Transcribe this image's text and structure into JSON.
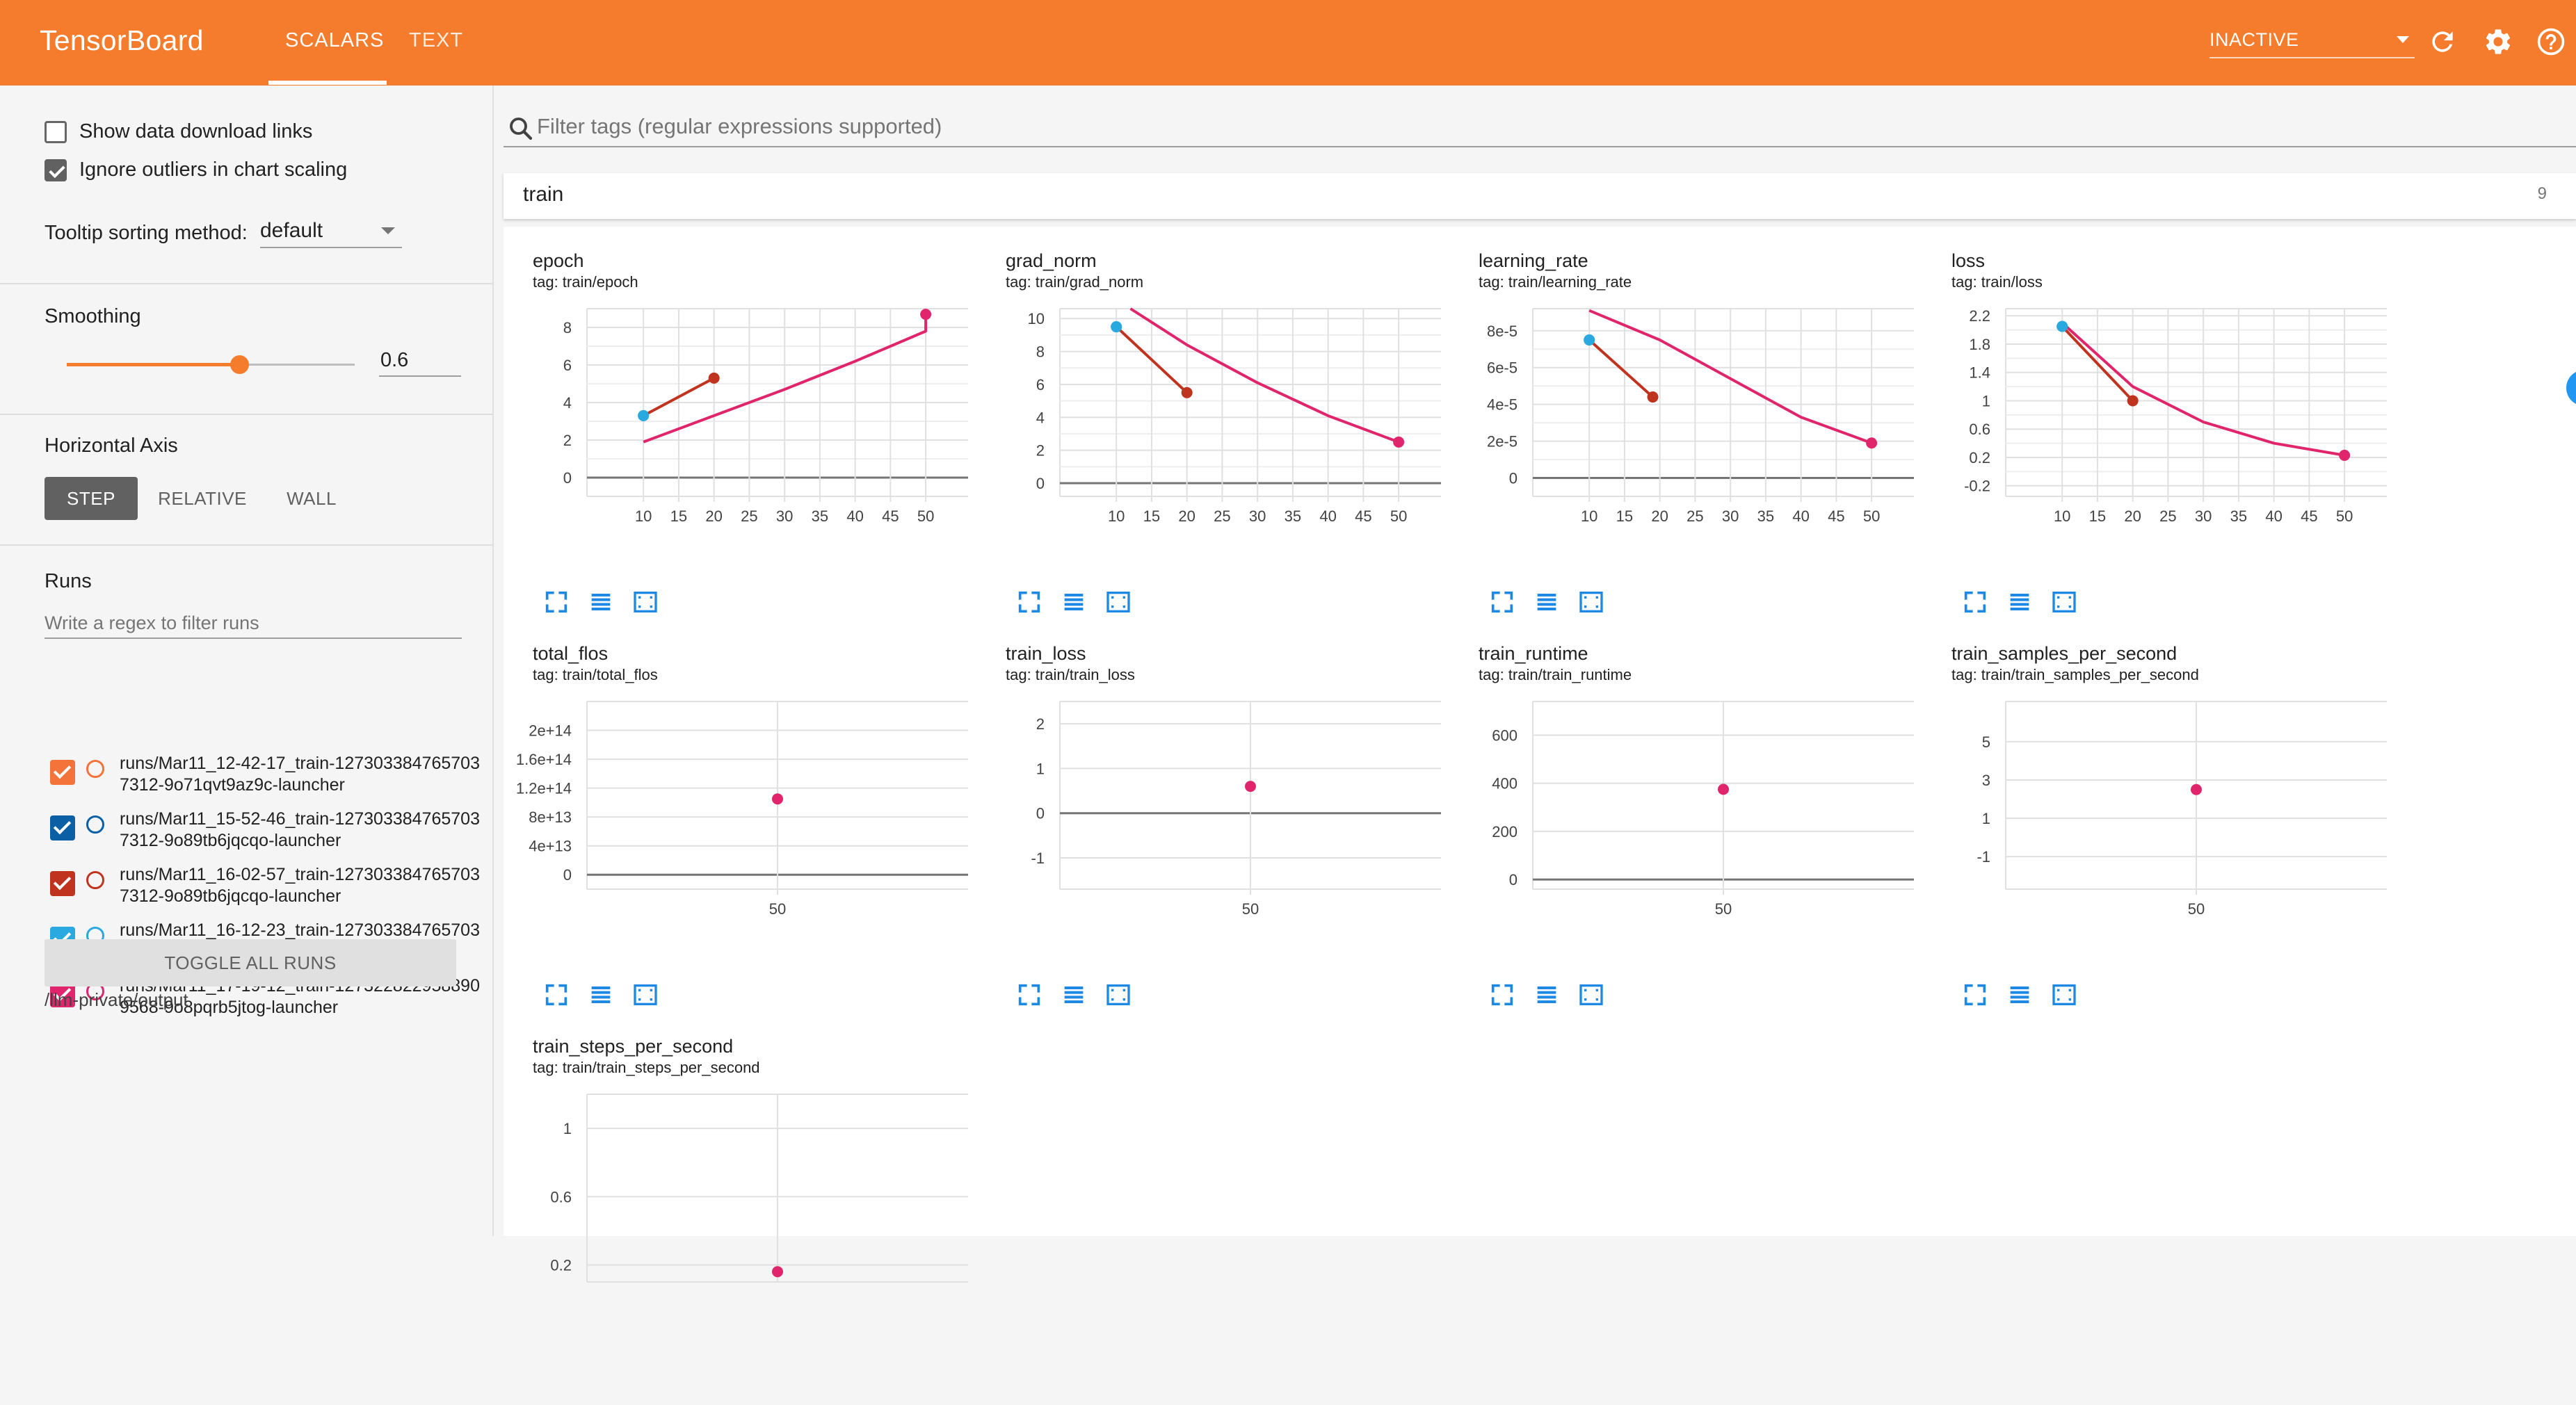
{
  "header": {
    "brand": "TensorBoard",
    "tabs": [
      {
        "label": "SCALARS",
        "active": true
      },
      {
        "label": "TEXT",
        "active": false
      }
    ],
    "run_status": "INACTIVE",
    "color": "#f57c2c"
  },
  "sidebar": {
    "show_download_label": "Show data download links",
    "show_download_checked": false,
    "ignore_outliers_label": "Ignore outliers in chart scaling",
    "ignore_outliers_checked": true,
    "tooltip_label": "Tooltip sorting method:",
    "tooltip_value": "default",
    "smoothing_title": "Smoothing",
    "smoothing_value": "0.6",
    "smoothing_fraction": 0.6,
    "axis_title": "Horizontal Axis",
    "axis_options": [
      "STEP",
      "RELATIVE",
      "WALL"
    ],
    "axis_selected": "STEP",
    "runs_title": "Runs",
    "runs_filter_placeholder": "Write a regex to filter runs",
    "runs": [
      {
        "name": "runs/Mar11_12-42-17_train-1273033847657037312-9o71qvt9az9c-launcher",
        "color": "#f4733a",
        "checked": true
      },
      {
        "name": "runs/Mar11_15-52-46_train-1273033847657037312-9o89tb6jqcqo-launcher",
        "color": "#0b5fa5",
        "checked": true
      },
      {
        "name": "runs/Mar11_16-02-57_train-1273033847657037312-9o89tb6jqcqo-launcher",
        "color": "#c0331f",
        "checked": true
      },
      {
        "name": "runs/Mar11_16-12-23_train-1273033847657037312-9o89tb6jqcqo-launcher",
        "color": "#29a9e0",
        "checked": true
      },
      {
        "name": "runs/Mar11_17-19-12_train-1273228229588909568-9o8pqrb5jtog-launcher",
        "color": "#e0256c",
        "checked": true
      }
    ],
    "toggle_all_label": "TOGGLE ALL RUNS",
    "logdir": "/llm-private/output"
  },
  "main": {
    "tag_filter_placeholder": "Filter tags (regular expressions supported)",
    "group_name": "train",
    "group_count": "9"
  },
  "chart_data": [
    {
      "title": "epoch",
      "tag": "tag: train/epoch",
      "type": "line",
      "xlim": [
        2,
        56
      ],
      "ylim": [
        -1,
        9
      ],
      "xticks": [
        "10",
        "15",
        "20",
        "25",
        "30",
        "35",
        "40",
        "45",
        "50"
      ],
      "yticks": [
        "0",
        "2",
        "4",
        "6",
        "8"
      ],
      "series": [
        {
          "color": "#29a9e0",
          "x": [
            10
          ],
          "y": [
            3.3
          ]
        },
        {
          "color": "#c0331f",
          "x": [
            10,
            20
          ],
          "y": [
            3.3,
            5.3
          ]
        },
        {
          "color": "#e0256c",
          "x": [
            10,
            20,
            30,
            40,
            50,
            50
          ],
          "y": [
            1.9,
            3.3,
            4.7,
            6.2,
            7.8,
            8.7
          ]
        }
      ]
    },
    {
      "title": "grad_norm",
      "tag": "tag: train/grad_norm",
      "type": "line",
      "xlim": [
        2,
        56
      ],
      "ylim": [
        -0.8,
        10.6
      ],
      "xticks": [
        "10",
        "15",
        "20",
        "25",
        "30",
        "35",
        "40",
        "45",
        "50"
      ],
      "yticks": [
        "0",
        "2",
        "4",
        "6",
        "8",
        "10"
      ],
      "series": [
        {
          "color": "#29a9e0",
          "x": [
            10
          ],
          "y": [
            9.5
          ]
        },
        {
          "color": "#c0331f",
          "x": [
            10,
            20
          ],
          "y": [
            9.5,
            5.5
          ]
        },
        {
          "color": "#e0256c",
          "x": [
            12,
            20,
            30,
            40,
            50
          ],
          "y": [
            10.6,
            8.4,
            6.1,
            4.1,
            2.5
          ]
        }
      ]
    },
    {
      "title": "learning_rate",
      "tag": "tag: train/learning_rate",
      "type": "line",
      "xlim": [
        2,
        56
      ],
      "ylim": [
        -1e-05,
        9.2e-05
      ],
      "xticks": [
        "10",
        "15",
        "20",
        "25",
        "30",
        "35",
        "40",
        "45",
        "50"
      ],
      "yticks": [
        "0",
        "2e-5",
        "4e-5",
        "6e-5",
        "8e-5"
      ],
      "yvals": [
        0,
        2e-05,
        4e-05,
        6e-05,
        8e-05
      ],
      "series": [
        {
          "color": "#29a9e0",
          "x": [
            10
          ],
          "y": [
            7.5e-05
          ]
        },
        {
          "color": "#c0331f",
          "x": [
            10,
            19
          ],
          "y": [
            7.5e-05,
            4.4e-05
          ]
        },
        {
          "color": "#e0256c",
          "x": [
            10,
            20,
            30,
            40,
            50
          ],
          "y": [
            9.1e-05,
            7.5e-05,
            5.4e-05,
            3.3e-05,
            1.9e-05
          ]
        }
      ]
    },
    {
      "title": "loss",
      "tag": "tag: train/loss",
      "type": "line",
      "xlim": [
        2,
        56
      ],
      "ylim": [
        -0.35,
        2.3
      ],
      "xticks": [
        "10",
        "15",
        "20",
        "25",
        "30",
        "35",
        "40",
        "45",
        "50"
      ],
      "yticks": [
        "-0.2",
        "0.2",
        "0.6",
        "1",
        "1.4",
        "1.8",
        "2.2"
      ],
      "yvals": [
        -0.2,
        0.2,
        0.6,
        1,
        1.4,
        1.8,
        2.2
      ],
      "series": [
        {
          "color": "#29a9e0",
          "x": [
            10
          ],
          "y": [
            2.05
          ]
        },
        {
          "color": "#c0331f",
          "x": [
            10,
            20
          ],
          "y": [
            2.05,
            1.0
          ]
        },
        {
          "color": "#e0256c",
          "x": [
            10,
            20,
            30,
            40,
            50
          ],
          "y": [
            2.1,
            1.2,
            0.7,
            0.4,
            0.23
          ]
        }
      ]
    },
    {
      "title": "total_flos",
      "tag": "tag: train/total_flos",
      "type": "scatter",
      "xlim": [
        -30,
        130
      ],
      "ylim": [
        -20000000000000.0,
        240000000000000.0
      ],
      "xticks": [
        "50"
      ],
      "xvals": [
        50
      ],
      "yticks": [
        "0",
        "4e+13",
        "8e+13",
        "1.2e+14",
        "1.6e+14",
        "2e+14"
      ],
      "yvals": [
        0,
        40000000000000.0,
        80000000000000.0,
        120000000000000.0,
        160000000000000.0,
        200000000000000.0
      ],
      "series": [
        {
          "color": "#e0256c",
          "x": [
            50
          ],
          "y": [
            105000000000000.0
          ]
        }
      ]
    },
    {
      "title": "train_loss",
      "tag": "tag: train/train_loss",
      "type": "scatter",
      "xlim": [
        -30,
        130
      ],
      "ylim": [
        -1.7,
        2.5
      ],
      "xticks": [
        "50"
      ],
      "xvals": [
        50
      ],
      "yticks": [
        "-1",
        "0",
        "1",
        "2"
      ],
      "yvals": [
        -1,
        0,
        1,
        2
      ],
      "series": [
        {
          "color": "#e0256c",
          "x": [
            50
          ],
          "y": [
            0.6
          ]
        }
      ]
    },
    {
      "title": "train_runtime",
      "tag": "tag: train/train_runtime",
      "type": "scatter",
      "xlim": [
        -30,
        130
      ],
      "ylim": [
        -40,
        740
      ],
      "xticks": [
        "50"
      ],
      "xvals": [
        50
      ],
      "yticks": [
        "0",
        "200",
        "400",
        "600"
      ],
      "yvals": [
        0,
        200,
        400,
        600
      ],
      "series": [
        {
          "color": "#e0256c",
          "x": [
            50
          ],
          "y": [
            375
          ]
        }
      ]
    },
    {
      "title": "train_samples_per_second",
      "tag": "tag: train/train_samples_per_second",
      "type": "scatter",
      "xlim": [
        -30,
        130
      ],
      "ylim": [
        -2.7,
        7.1
      ],
      "xticks": [
        "50"
      ],
      "xvals": [
        50
      ],
      "yticks": [
        "-1",
        "1",
        "3",
        "5"
      ],
      "yvals": [
        -1,
        1,
        3,
        5
      ],
      "series": [
        {
          "color": "#e0256c",
          "x": [
            50
          ],
          "y": [
            2.5
          ]
        }
      ]
    },
    {
      "title": "train_steps_per_second",
      "tag": "tag: train/train_steps_per_second",
      "type": "scatter",
      "xlim": [
        -30,
        130
      ],
      "ylim": [
        0.1,
        1.2
      ],
      "xticks": [],
      "xvals": [],
      "yticks": [
        "0.2",
        "0.6",
        "1"
      ],
      "yvals": [
        0.2,
        0.6,
        1
      ],
      "series": [
        {
          "color": "#e0256c",
          "x": [
            50
          ],
          "y": [
            0.16
          ]
        }
      ]
    }
  ]
}
